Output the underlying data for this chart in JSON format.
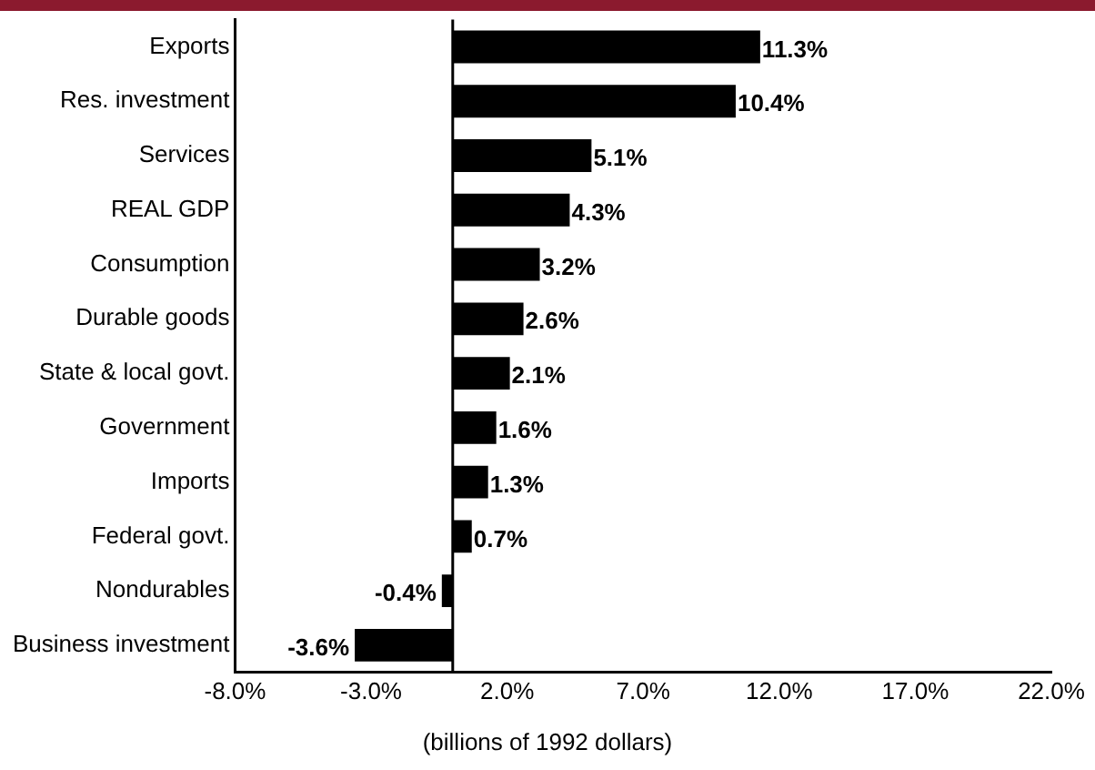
{
  "chart_data": {
    "type": "bar",
    "orientation": "horizontal",
    "xlabel": "(billions of 1992 dollars)",
    "categories": [
      "Exports",
      "Res. investment",
      "Services",
      "REAL GDP",
      "Consumption",
      "Durable goods",
      "State & local govt.",
      "Government",
      "Imports",
      "Federal govt.",
      "Nondurables",
      "Business investment"
    ],
    "values": [
      11.3,
      10.4,
      5.1,
      4.3,
      3.2,
      2.6,
      2.1,
      1.6,
      1.3,
      0.7,
      -0.4,
      -3.6
    ],
    "value_labels": [
      "11.3%",
      "10.4%",
      "5.1%",
      "4.3%",
      "3.2%",
      "2.6%",
      "2.1%",
      "1.6%",
      "1.3%",
      "0.7%",
      "-0.4%",
      "-3.6%"
    ],
    "color": "#000000",
    "xlim": [
      -8,
      22
    ],
    "xticks": [
      {
        "value": -8,
        "label": "-8.0%"
      },
      {
        "value": -3,
        "label": "-3.0%"
      },
      {
        "value": 2,
        "label": "2.0%"
      },
      {
        "value": 7,
        "label": "7.0%"
      },
      {
        "value": 12,
        "label": "12.0%"
      },
      {
        "value": 17,
        "label": "17.0%"
      },
      {
        "value": 22,
        "label": "22.0%"
      }
    ],
    "ref_lines": [
      {
        "axis": "x",
        "value": 0,
        "color": "#000000"
      }
    ],
    "grid": false,
    "legend": false
  }
}
